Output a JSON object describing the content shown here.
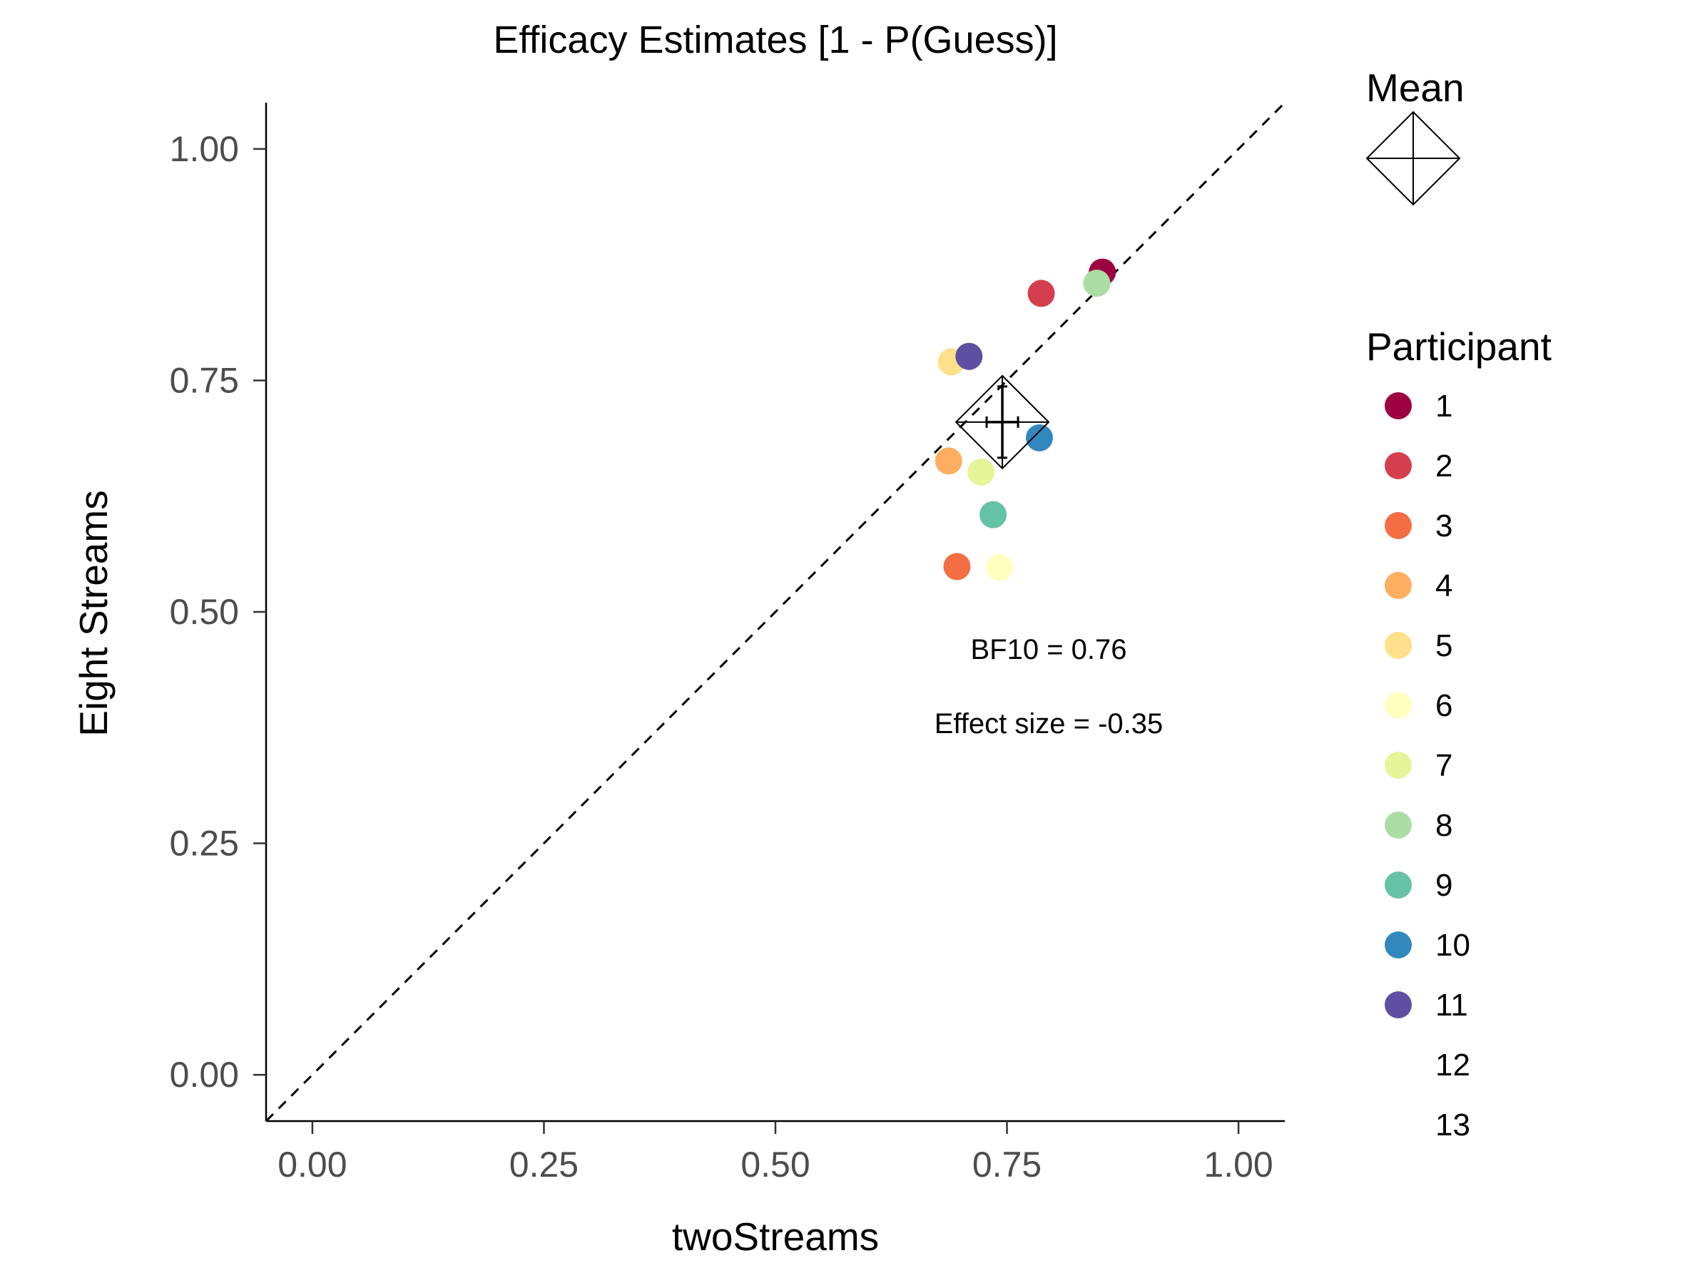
{
  "chart_data": {
    "type": "scatter",
    "title": "Efficacy Estimates [1 - P(Guess)]",
    "xlabel": "twoStreams",
    "ylabel": "Eight Streams",
    "xlim": [
      -0.05,
      1.05
    ],
    "ylim": [
      -0.05,
      1.05
    ],
    "x_ticks": [
      "0.00",
      "0.25",
      "0.50",
      "0.75",
      "1.00"
    ],
    "y_ticks": [
      "0.00",
      "0.25",
      "0.50",
      "0.75",
      "1.00"
    ],
    "x_tick_values": [
      0,
      0.25,
      0.5,
      0.75,
      1.0
    ],
    "y_tick_values": [
      0,
      0.25,
      0.5,
      0.75,
      1.0
    ],
    "grid": false,
    "reference_line": "y = x (dashed)",
    "series": [
      {
        "name": "1",
        "x": 0.853,
        "y": 0.867,
        "color": "#9E0142"
      },
      {
        "name": "2",
        "x": 0.787,
        "y": 0.844,
        "color": "#D53E4F"
      },
      {
        "name": "3",
        "x": 0.696,
        "y": 0.549,
        "color": "#F46D43"
      },
      {
        "name": "4",
        "x": 0.687,
        "y": 0.663,
        "color": "#FDAE61"
      },
      {
        "name": "5",
        "x": 0.69,
        "y": 0.77,
        "color": "#FEE08B"
      },
      {
        "name": "6",
        "x": 0.742,
        "y": 0.548,
        "color": "#FFFFBF"
      },
      {
        "name": "7",
        "x": 0.722,
        "y": 0.651,
        "color": "#E6F598"
      },
      {
        "name": "8",
        "x": 0.847,
        "y": 0.855,
        "color": "#ABDDA4"
      },
      {
        "name": "9",
        "x": 0.735,
        "y": 0.605,
        "color": "#66C2A5"
      },
      {
        "name": "10",
        "x": 0.785,
        "y": 0.688,
        "color": "#3288BD"
      },
      {
        "name": "11",
        "x": 0.709,
        "y": 0.776,
        "color": "#5E4FA2"
      },
      {
        "name": "12",
        "x": null,
        "y": null,
        "color": null
      },
      {
        "name": "13",
        "x": null,
        "y": null,
        "color": null
      }
    ],
    "mean": {
      "x": 0.745,
      "y": 0.705
    },
    "legend": {
      "mean_title": "Mean",
      "participant_title": "Participant",
      "placement": "right"
    },
    "annotations": [
      "BF10 = 0.76",
      "Effect size = -0.35"
    ]
  }
}
